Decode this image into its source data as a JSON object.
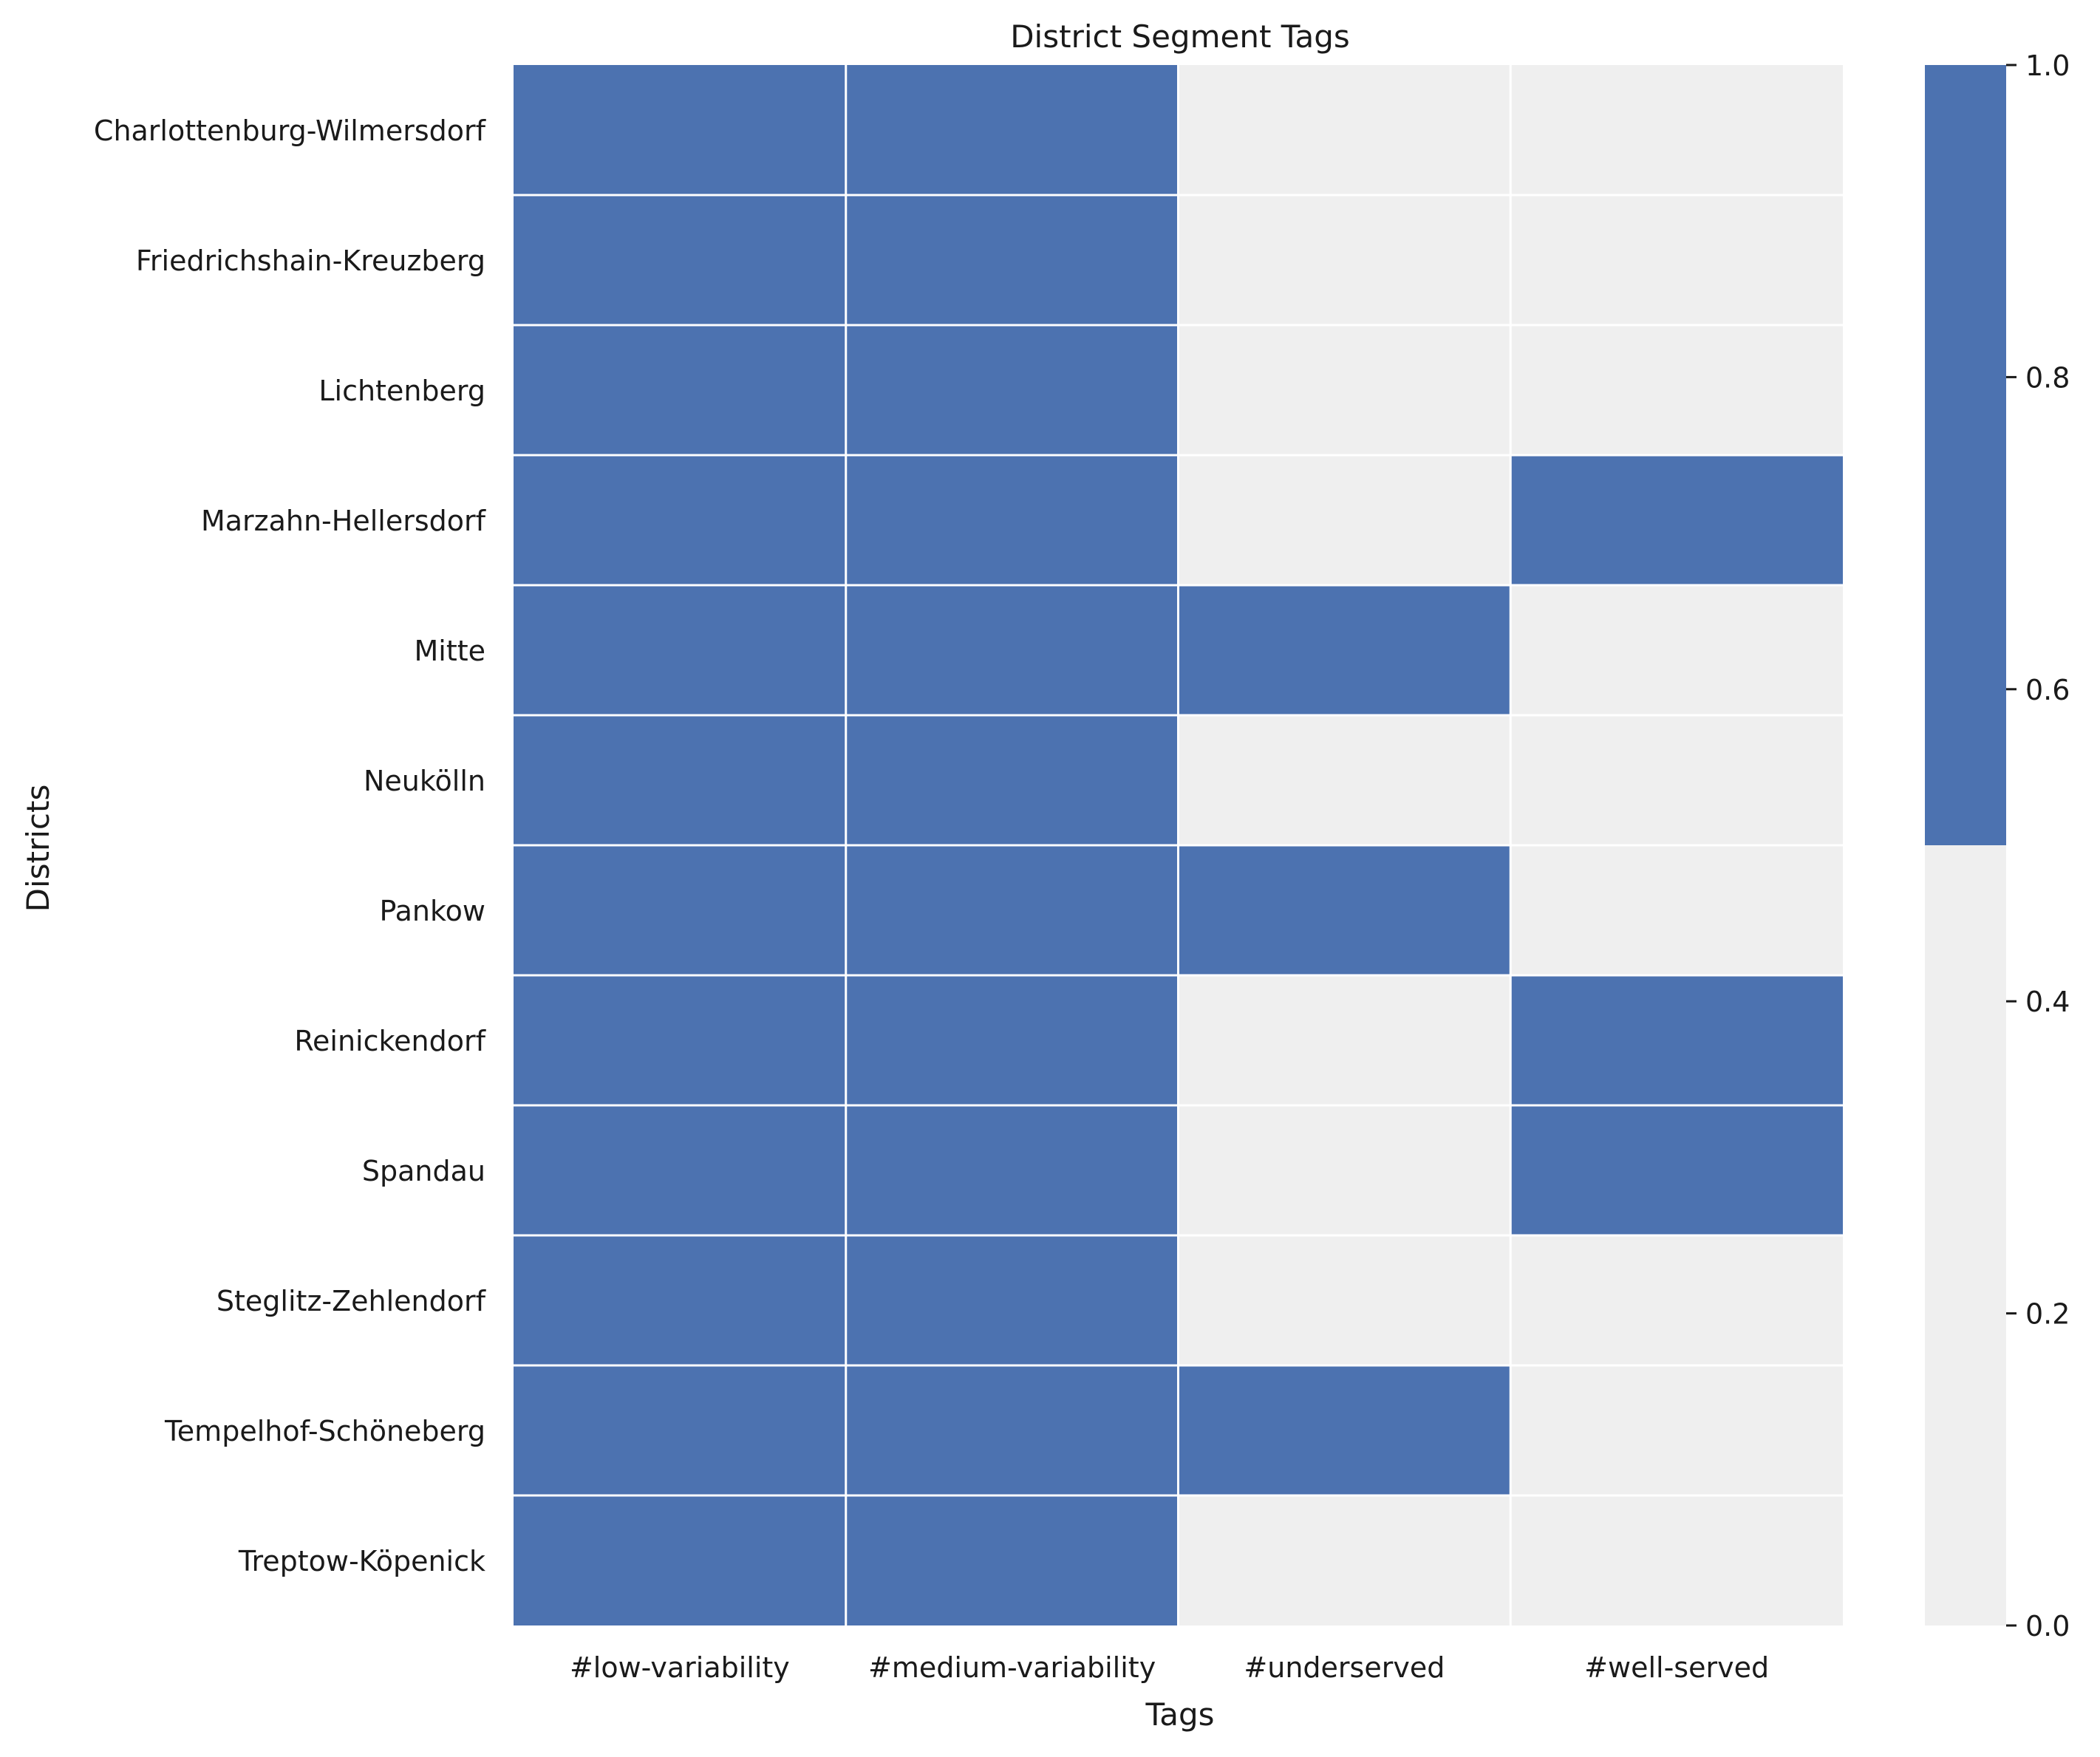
{
  "chart_data": {
    "type": "heatmap",
    "title": "District Segment Tags",
    "xlabel": "Tags",
    "ylabel": "Districts",
    "columns": [
      "#low-variability",
      "#medium-variability",
      "#underserved",
      "#well-served"
    ],
    "rows": [
      "Charlottenburg-Wilmersdorf",
      "Friedrichshain-Kreuzberg",
      "Lichtenberg",
      "Marzahn-Hellersdorf",
      "Mitte",
      "Neukölln",
      "Pankow",
      "Reinickendorf",
      "Spandau",
      "Steglitz-Zehlendorf",
      "Tempelhof-Schöneberg",
      "Treptow-Köpenick"
    ],
    "values": [
      [
        1,
        1,
        0,
        0
      ],
      [
        1,
        1,
        0,
        0
      ],
      [
        1,
        1,
        0,
        0
      ],
      [
        1,
        1,
        0,
        1
      ],
      [
        1,
        1,
        1,
        0
      ],
      [
        1,
        1,
        0,
        0
      ],
      [
        1,
        1,
        1,
        0
      ],
      [
        1,
        1,
        0,
        1
      ],
      [
        1,
        1,
        0,
        1
      ],
      [
        1,
        1,
        0,
        0
      ],
      [
        1,
        1,
        1,
        0
      ],
      [
        1,
        1,
        0,
        0
      ]
    ],
    "colormap": {
      "low": "#efefef",
      "high": "#4c72b0",
      "threshold": 0.5
    },
    "colorbar": {
      "range": [
        0.0,
        1.0
      ],
      "ticks": [
        "0.0",
        "0.2",
        "0.4",
        "0.6",
        "0.8",
        "1.0"
      ]
    },
    "cell_border_color": "#ffffff",
    "legend": "none",
    "grid": false
  }
}
